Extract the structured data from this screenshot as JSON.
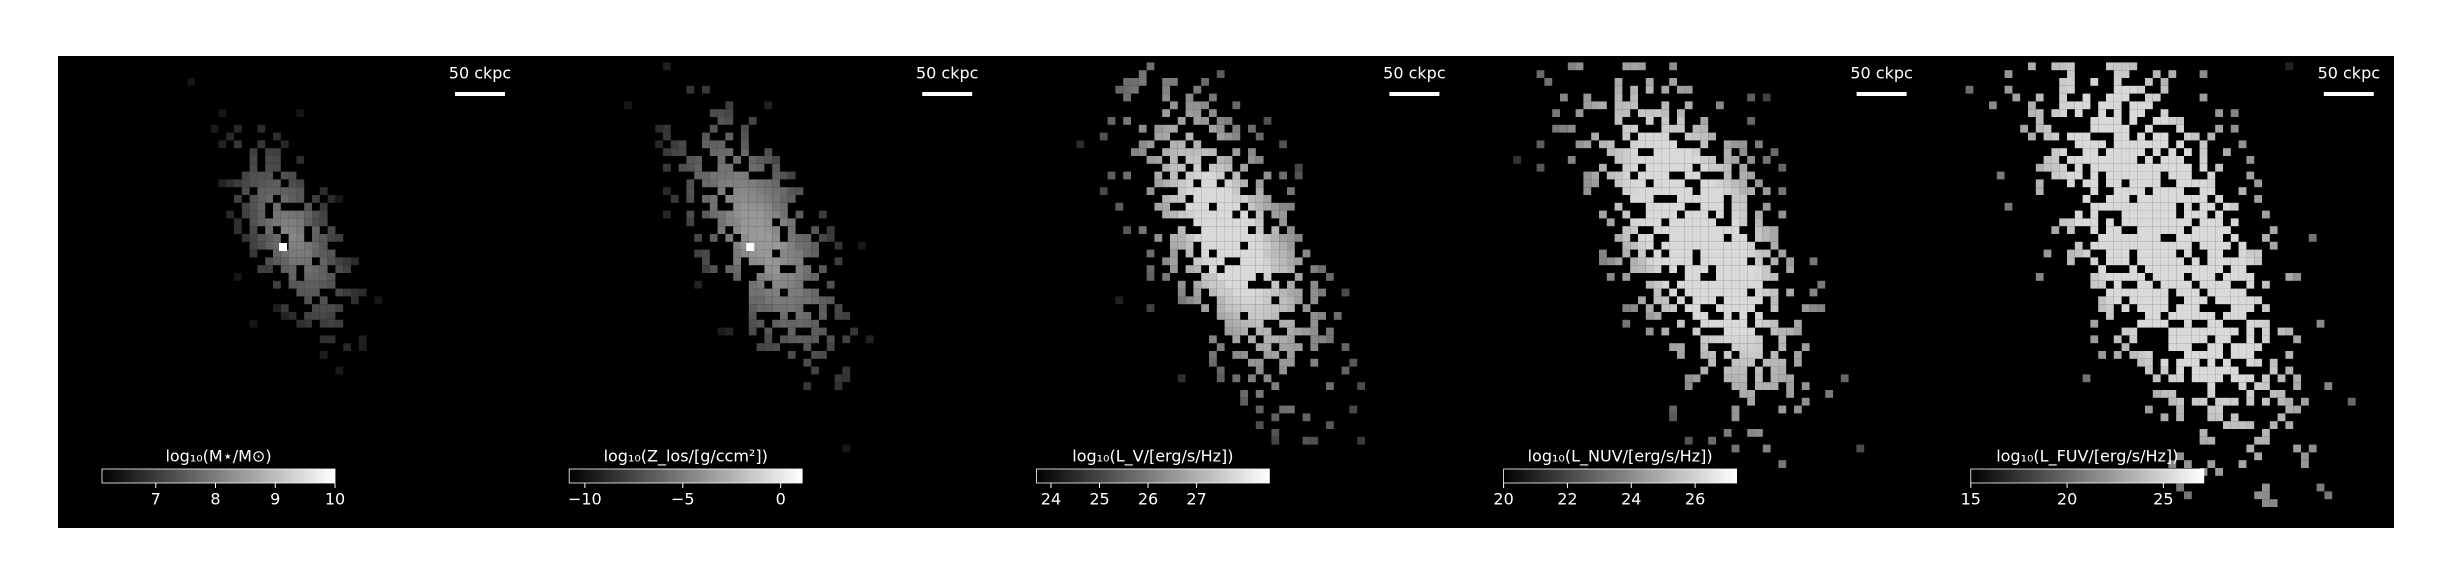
{
  "chart_data": [
    {
      "type": "image",
      "scale_label": "50 ckpc",
      "colorbar_label": "log₁₀(M⋆/M⊙)",
      "xlim": [
        6.1,
        10
      ],
      "xticks": [
        7,
        8,
        9,
        10
      ]
    },
    {
      "type": "image",
      "scale_label": "50 ckpc",
      "colorbar_label": "log₁₀(Z_los/[g/ccm²])",
      "xlim": [
        -10.8,
        1.1
      ],
      "xticks": [
        {
          "value": -10,
          "label": "−10"
        },
        {
          "value": -5,
          "label": "−5"
        },
        0
      ]
    },
    {
      "type": "image",
      "scale_label": "50 ckpc",
      "colorbar_label": "log₁₀(L_V/[erg/s/Hz])",
      "xlim": [
        23.7,
        28.5
      ],
      "xticks": [
        24,
        25,
        26,
        27
      ]
    },
    {
      "type": "image",
      "scale_label": "50 ckpc",
      "colorbar_label": "log₁₀(L_NUV/[erg/s/Hz])",
      "xlim": [
        20,
        27.3
      ],
      "xticks": [
        20,
        22,
        24,
        26
      ]
    },
    {
      "type": "image",
      "scale_label": "50 ckpc",
      "colorbar_label": "log₁₀(L_FUV/[erg/s/Hz])",
      "xlim": [
        15,
        27.1
      ],
      "xticks": [
        15,
        20,
        25
      ]
    }
  ]
}
